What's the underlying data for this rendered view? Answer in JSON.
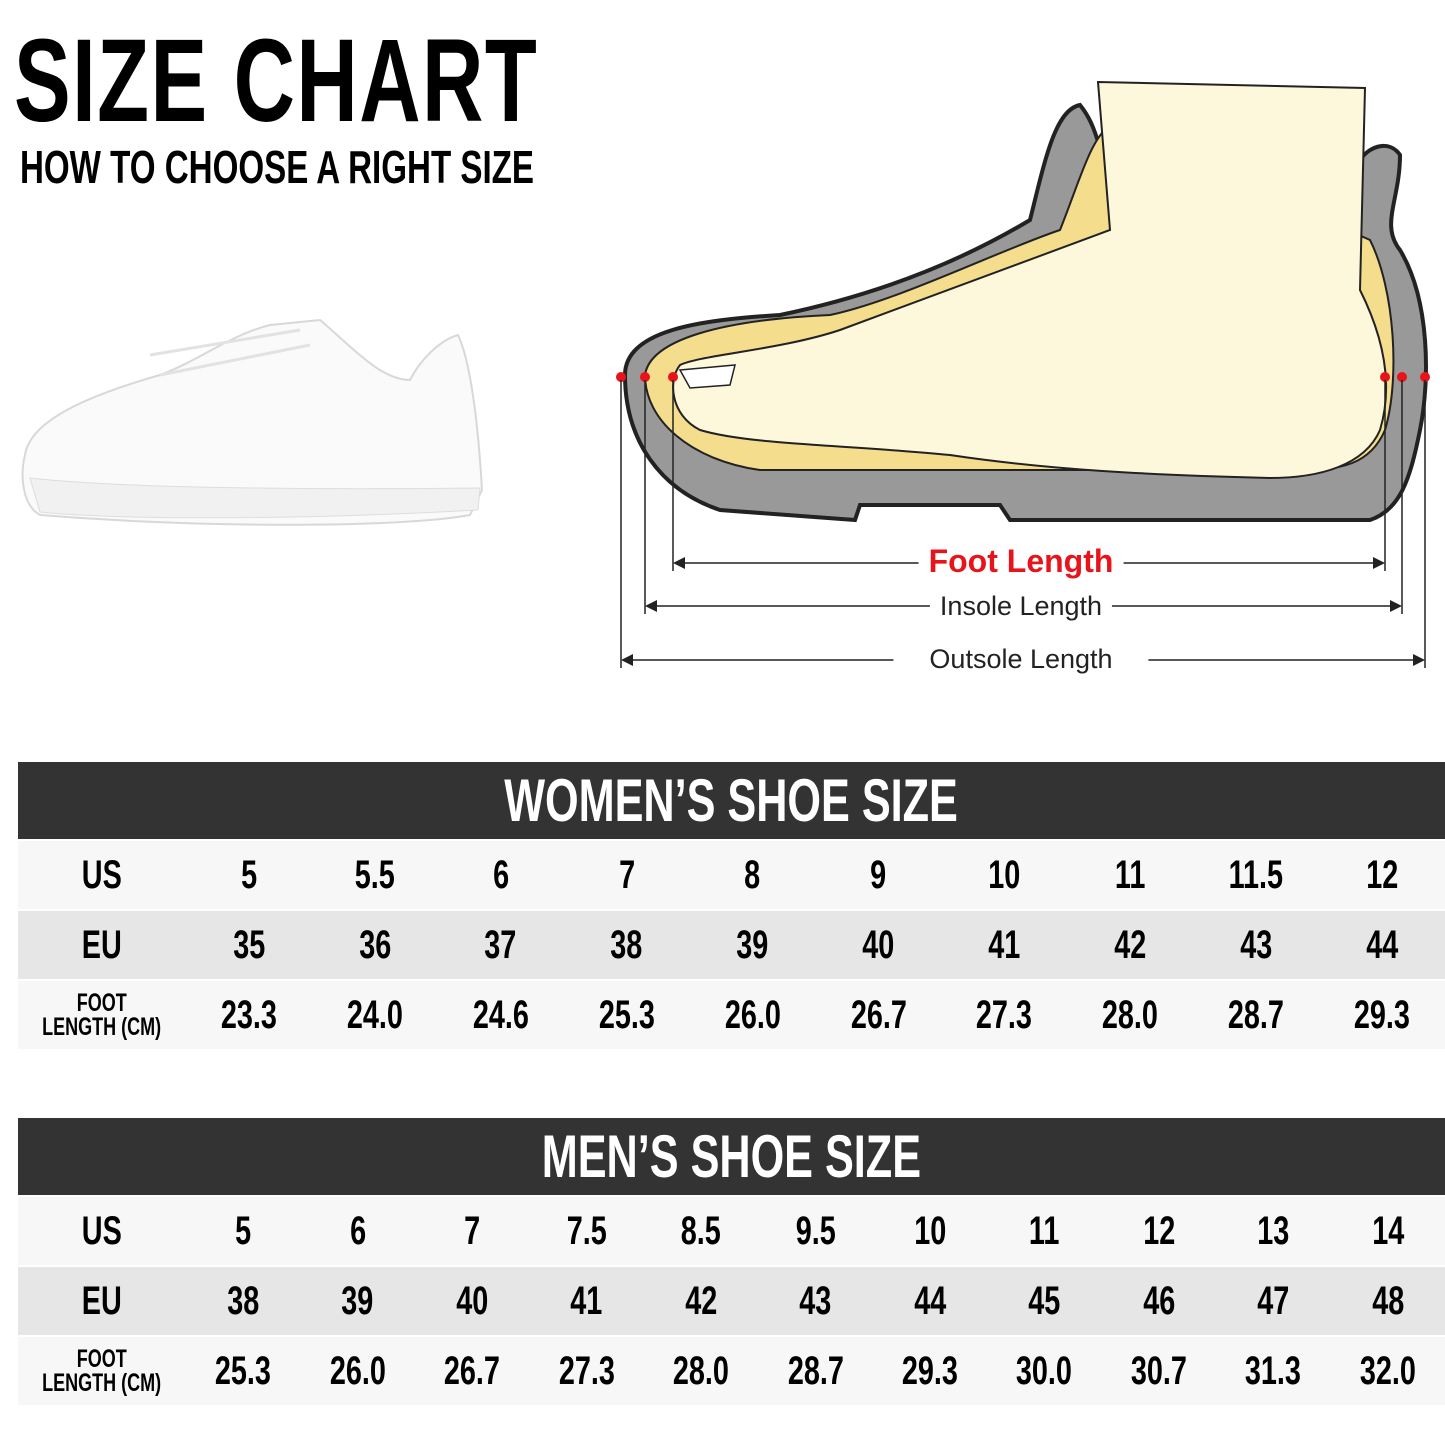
{
  "header": {
    "title": "SIZE CHART",
    "subtitle": "HOW TO CHOOSE A RIGHT SIZE"
  },
  "diagram": {
    "foot_length": "Foot Length",
    "insole_length": "Insole Length",
    "outsole_length": "Outsole Length",
    "colors": {
      "foot_length": "#e8141b",
      "marker": "#e8141b",
      "sole": "#999999",
      "insole": "#f5dd8e",
      "foot": "#fdf8dc"
    }
  },
  "women": {
    "title": "WOMEN’S SHOE SIZE",
    "labels": {
      "us": "US",
      "eu": "EU",
      "foot_1": "FOOT",
      "foot_2": "LENGTH (CM)"
    },
    "us": [
      "5",
      "5.5",
      "6",
      "7",
      "8",
      "9",
      "10",
      "11",
      "11.5",
      "12"
    ],
    "eu": [
      "35",
      "36",
      "37",
      "38",
      "39",
      "40",
      "41",
      "42",
      "43",
      "44"
    ],
    "foot": [
      "23.3",
      "24.0",
      "24.6",
      "25.3",
      "26.0",
      "26.7",
      "27.3",
      "28.0",
      "28.7",
      "29.3"
    ]
  },
  "men": {
    "title": "MEN’S SHOE SIZE",
    "labels": {
      "us": "US",
      "eu": "EU",
      "foot_1": "FOOT",
      "foot_2": "LENGTH (CM)"
    },
    "us": [
      "5",
      "6",
      "7",
      "7.5",
      "8.5",
      "9.5",
      "10",
      "11",
      "12",
      "13",
      "14"
    ],
    "eu": [
      "38",
      "39",
      "40",
      "41",
      "42",
      "43",
      "44",
      "45",
      "46",
      "47",
      "48"
    ],
    "foot": [
      "25.3",
      "26.0",
      "26.7",
      "27.3",
      "28.0",
      "28.7",
      "29.3",
      "30.0",
      "30.7",
      "31.3",
      "32.0"
    ]
  }
}
